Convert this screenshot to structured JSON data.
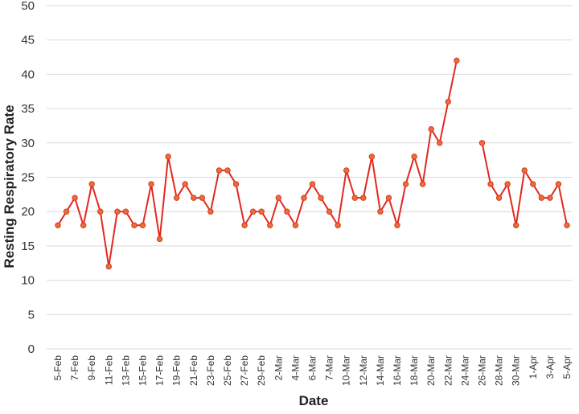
{
  "chart_data": {
    "type": "line",
    "title": "",
    "xlabel": "Date",
    "ylabel": "Resting Respiratory Rate",
    "ylim": [
      0,
      50
    ],
    "yticks": [
      0,
      5,
      10,
      15,
      20,
      25,
      30,
      35,
      40,
      45,
      50
    ],
    "grid": true,
    "legend": "none",
    "line_color": "#e3281f",
    "marker_color": "#ef6b3a",
    "x": [
      "5-Feb",
      "6-Feb",
      "7-Feb",
      "8-Feb",
      "9-Feb",
      "10-Feb",
      "11-Feb",
      "12-Feb",
      "13-Feb",
      "14-Feb",
      "15-Feb",
      "16-Feb",
      "17-Feb",
      "18-Feb",
      "19-Feb",
      "20-Feb",
      "21-Feb",
      "22-Feb",
      "23-Feb",
      "24-Feb",
      "25-Feb",
      "26-Feb",
      "27-Feb",
      "28-Feb",
      "29-Feb",
      "1-Mar",
      "2-Mar",
      "3-Mar",
      "4-Mar",
      "5-Mar",
      "6-Mar",
      "7-Mar",
      "8-Mar",
      "9-Mar",
      "10-Mar",
      "11-Mar",
      "12-Mar",
      "13-Mar",
      "14-Mar",
      "15-Mar",
      "16-Mar",
      "17-Mar",
      "18-Mar",
      "19-Mar",
      "20-Mar",
      "21-Mar",
      "22-Mar",
      "23-Mar",
      "24-Mar",
      "25-Mar",
      "26-Mar",
      "27-Mar",
      "28-Mar",
      "29-Mar",
      "30-Mar",
      "31-Mar",
      "1-Apr",
      "2-Apr",
      "3-Apr",
      "4-Apr",
      "5-Apr"
    ],
    "xtick_labels": [
      "5-Feb",
      "7-Feb",
      "9-Feb",
      "11-Feb",
      "13-Feb",
      "15-Feb",
      "17-Feb",
      "19-Feb",
      "21-Feb",
      "23-Feb",
      "25-Feb",
      "27-Feb",
      "29-Feb",
      "2-Mar",
      "4-Mar",
      "6-Mar",
      "7-Mar",
      "10-Mar",
      "12-Mar",
      "14-Mar",
      "16-Mar",
      "18-Mar",
      "20-Mar",
      "22-Mar",
      "24-Mar",
      "26-Mar",
      "28-Mar",
      "30-Mar",
      "1-Apr",
      "3-Apr",
      "5-Apr"
    ],
    "series": [
      {
        "values": [
          18,
          20,
          22,
          18,
          24,
          20,
          12,
          20,
          20,
          18,
          18,
          24,
          16,
          28,
          22,
          24,
          22,
          22,
          20,
          26,
          26,
          24,
          18,
          20,
          20,
          18,
          22,
          20,
          18,
          22,
          24,
          22,
          20,
          18,
          26,
          22,
          22,
          28,
          20,
          22,
          18,
          24,
          28,
          24,
          32,
          30,
          36,
          42,
          null,
          null,
          30,
          24,
          22,
          24,
          18,
          26,
          24,
          22,
          22,
          24,
          18
        ]
      }
    ]
  }
}
